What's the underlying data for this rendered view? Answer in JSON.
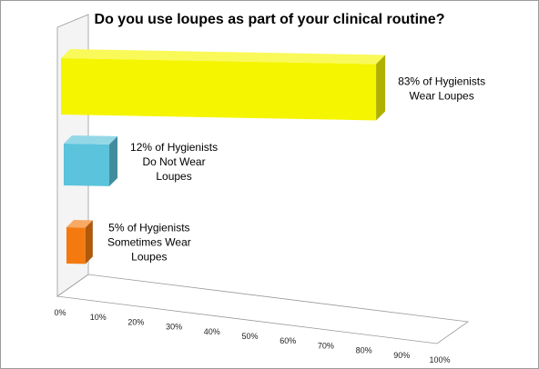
{
  "chart_data": {
    "type": "bar",
    "orientation": "horizontal",
    "style": "3d",
    "title": "Do you use loupes as part of your clinical routine?",
    "xlim": [
      0,
      100
    ],
    "x_ticks": [
      "0%",
      "10%",
      "20%",
      "30%",
      "40%",
      "50%",
      "60%",
      "70%",
      "80%",
      "90%",
      "100%"
    ],
    "grid": false,
    "legend": "none",
    "categories": [
      "Wear Loupes",
      "Do Not Wear Loupes",
      "Sometimes Wear Loupes"
    ],
    "values": [
      83,
      12,
      5
    ],
    "colors": [
      "#f5f500",
      "#5bc3dc",
      "#f47a10"
    ],
    "data_labels": [
      [
        "83% of Hygienists",
        "Wear Loupes"
      ],
      [
        "12% of Hygienists",
        "Do Not Wear",
        "Loupes"
      ],
      [
        "5% of Hygienists",
        "Sometimes Wear",
        "Loupes"
      ]
    ]
  }
}
